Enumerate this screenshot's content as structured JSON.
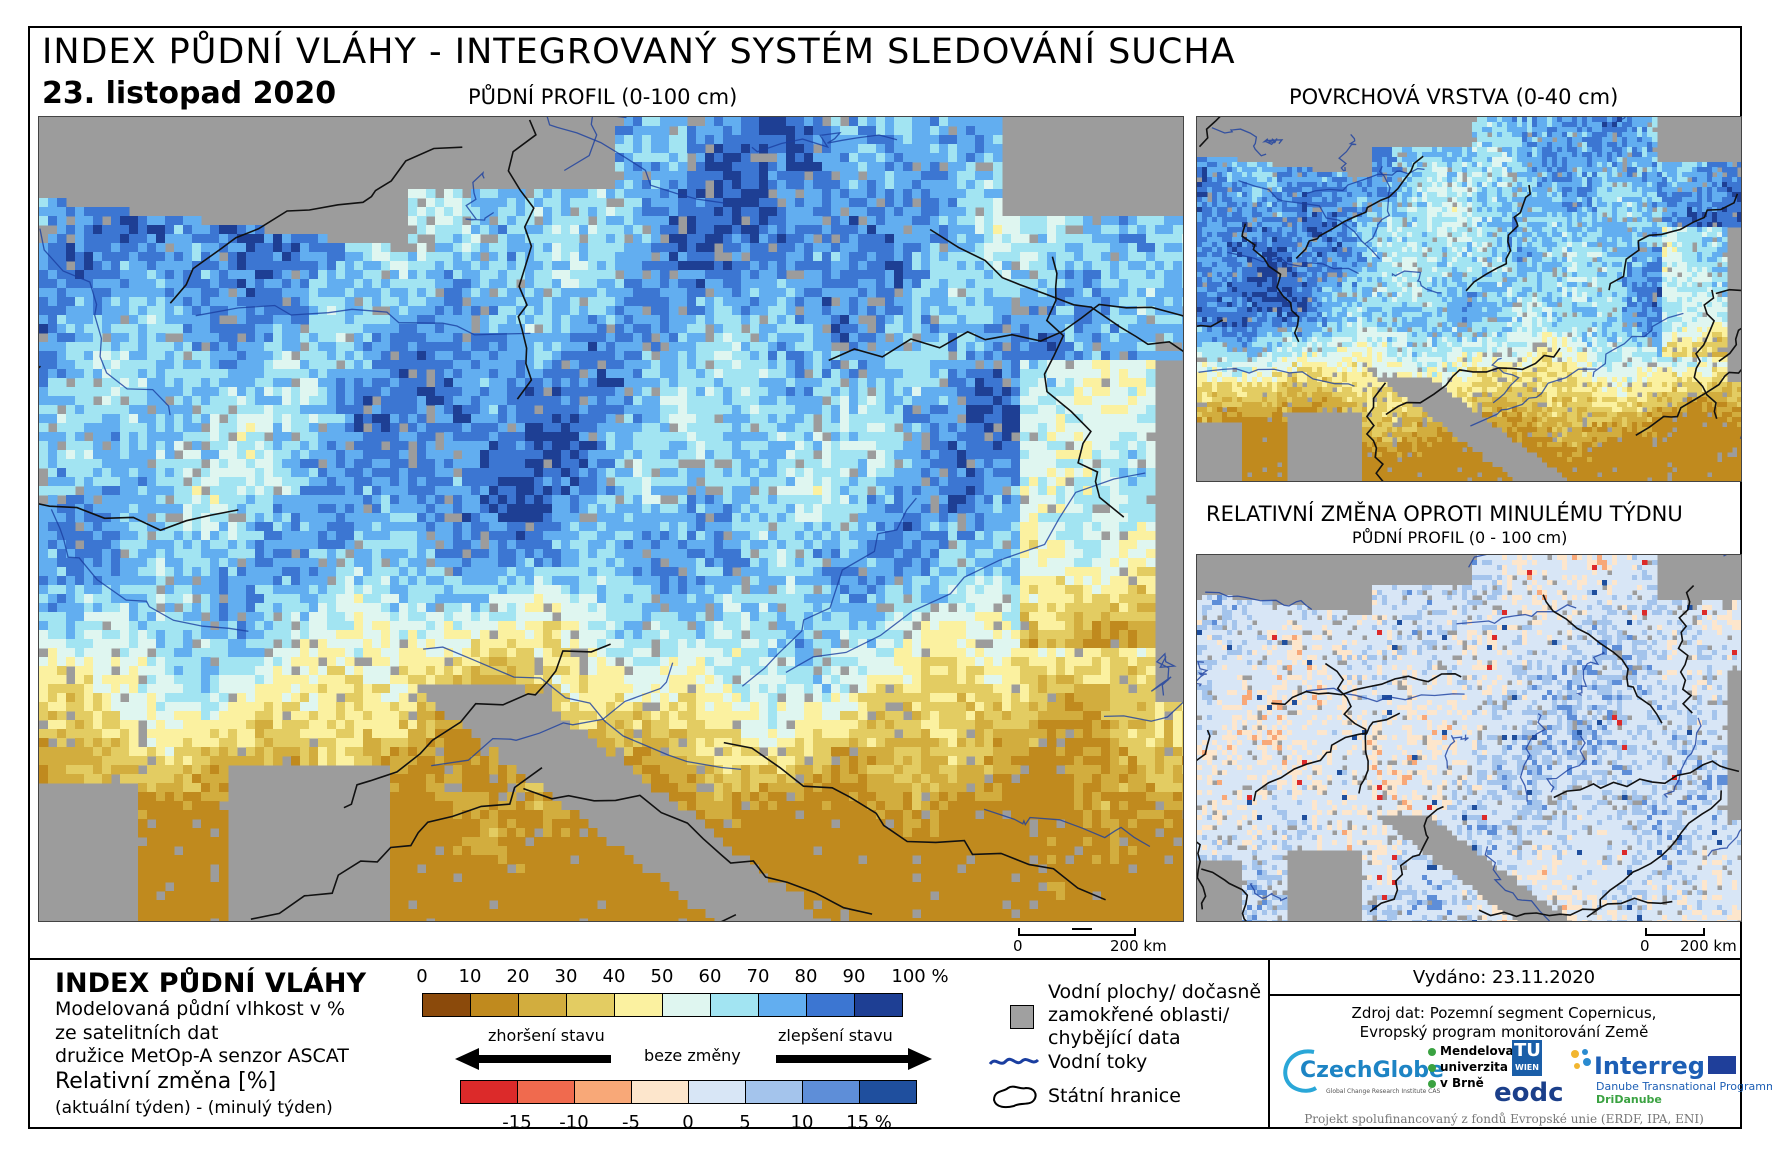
{
  "header": {
    "title": "INDEX PŮDNÍ VLÁHY - INTEGROVANÝ SYSTÉM SLEDOVÁNÍ SUCHA",
    "date": "23. listopad 2020"
  },
  "panels": {
    "main_label": "PŮDNÍ PROFIL (0-100 cm)",
    "surface_label": "POVRCHOVÁ VRSTVA (0-40 cm)",
    "change_label": "RELATIVNÍ ZMĚNA OPROTI MINULÉMU TÝDNU",
    "change_sublabel": "PŮDNÍ PROFIL (0 - 100 cm)"
  },
  "scale_bars": {
    "main": {
      "zero": "0",
      "distance": "200 km"
    },
    "small": {
      "zero": "0",
      "distance": "200 km"
    }
  },
  "legend": {
    "title": "INDEX PŮDNÍ VLÁHY",
    "desc_line1": "Modelovaná půdní vlhkost v %",
    "desc_line2": "ze satelitních dat",
    "desc_line3": "družice MetOp-A senzor ASCAT",
    "change_title": "Relativní změna [%]",
    "change_desc": "(aktuální týden) - (minulý týden)",
    "moisture_ticks": [
      "0",
      "10",
      "20",
      "30",
      "40",
      "50",
      "60",
      "70",
      "80",
      "90",
      "100 %"
    ],
    "moisture_colors": [
      "#8b4a0b",
      "#c08a1e",
      "#d2ad3e",
      "#e3cc62",
      "#fbf1a0",
      "#dff6f0",
      "#a2e4f2",
      "#62aef0",
      "#3c76d2",
      "#1e3f94"
    ],
    "arrow_worse": "zhoršení stavu",
    "arrow_none": "beze změny",
    "arrow_better": "zlepšení stavu",
    "change_ticks": [
      "-15",
      "-10",
      "-5",
      "0",
      "5",
      "10",
      "15 %"
    ],
    "change_colors": [
      "#dc2a2a",
      "#f06a4e",
      "#f8a878",
      "#fde6cc",
      "#d8e6f6",
      "#a4c4ec",
      "#5e8ed8",
      "#1f4f9e"
    ],
    "key_water": "Vodní plochy/ dočasně",
    "key_water2": "zamokřené oblasti/",
    "key_water3": "chybějící data",
    "key_rivers": "Vodní toky",
    "key_borders": "Státní hranice"
  },
  "info": {
    "issued": "Vydáno: 23.11.2020",
    "source_line1": "Zdroj dat: Pozemní segment Copernicus,",
    "source_line2": "Evropský program monitorování Země",
    "footer": "Projekt spolufinancovaný z fondů Evropské unie (ERDF, IPA, ENI)"
  },
  "logos": {
    "czechglobe": "CzechGlobe",
    "czechglobe_sub": "Global Change Research Institute CAS",
    "mendel_1": "Mendelova",
    "mendel_2": "univerzita",
    "mendel_3": "v Brně",
    "tu": "TU",
    "tu_sub": "WIEN",
    "eodc": "eodc",
    "interreg": "Interreg",
    "interreg_sub": "Danube Transnational Programme",
    "dridanube": "DriDanube"
  }
}
